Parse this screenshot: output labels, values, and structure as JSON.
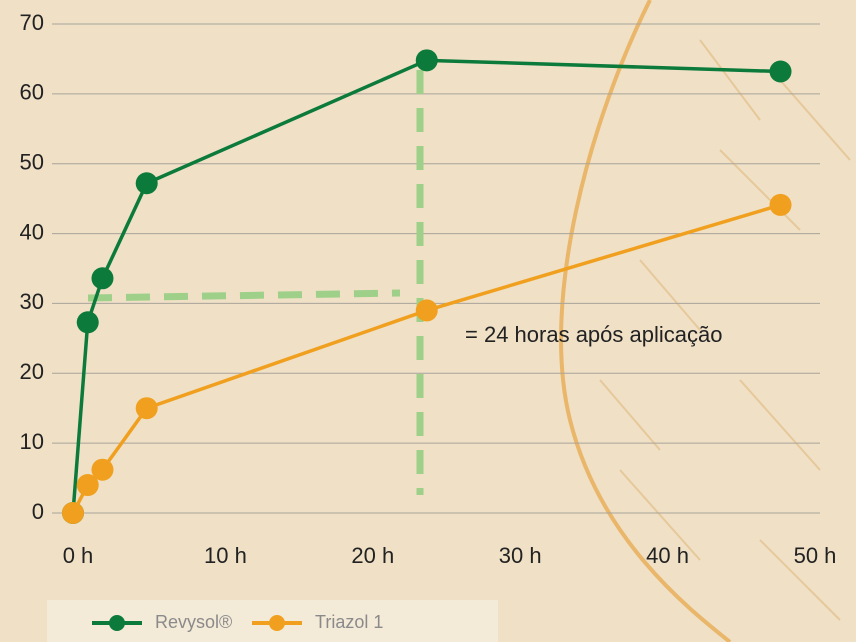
{
  "chart_data": {
    "type": "line",
    "annotation": "= 24 horas após aplicação",
    "xlim": [
      0,
      50
    ],
    "ylim": [
      0,
      70
    ],
    "xticks": [
      {
        "value": 0,
        "label": "0 h"
      },
      {
        "value": 10,
        "label": "10 h"
      },
      {
        "value": 20,
        "label": "20 h"
      },
      {
        "value": 30,
        "label": "30 h"
      },
      {
        "value": 40,
        "label": "40 h"
      },
      {
        "value": 50,
        "label": "50 h"
      }
    ],
    "yticks": [
      0,
      10,
      20,
      30,
      40,
      50,
      60,
      70
    ],
    "grid": true,
    "legend": "bottom",
    "series": [
      {
        "name": "Revysol®",
        "color": "#0b7a3b",
        "x": [
          0,
          1,
          2,
          5,
          24,
          48
        ],
        "values": [
          0,
          27.3,
          33.6,
          47.2,
          64.8,
          63.2
        ]
      },
      {
        "name": "Triazol 1",
        "color": "#f0a01e",
        "x": [
          0,
          1,
          2,
          5,
          24,
          48
        ],
        "values": [
          0,
          4,
          6.2,
          15,
          29,
          44.1
        ]
      }
    ]
  }
}
